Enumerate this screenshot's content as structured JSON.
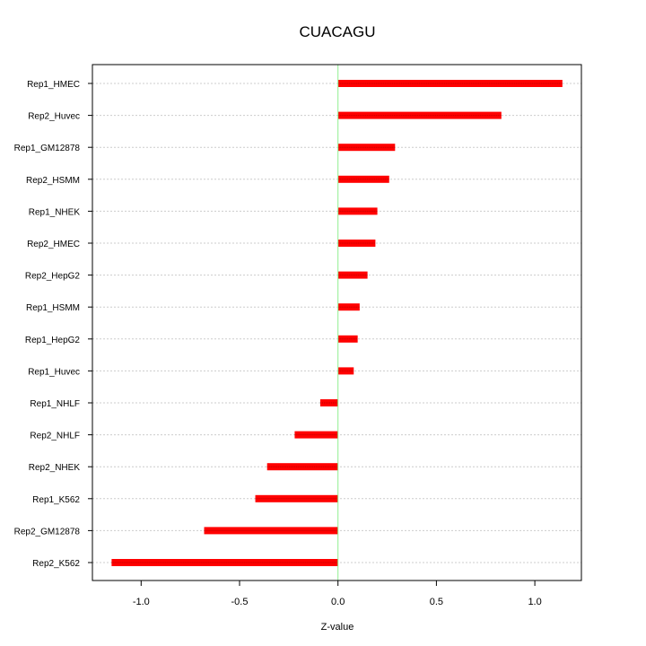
{
  "chart_data": {
    "type": "bar",
    "orientation": "horizontal",
    "title": "CUACAGU",
    "xlabel": "Z-value",
    "ylabel": "",
    "xlim": [
      -1.25,
      1.23
    ],
    "xticks": [
      -1.0,
      -0.5,
      0.0,
      0.5,
      1.0
    ],
    "xtick_labels": [
      "-1.0",
      "-0.5",
      "0.0",
      "0.5",
      "1.0"
    ],
    "grid": "horizontal dotted",
    "categories": [
      "Rep1_HMEC",
      "Rep2_Huvec",
      "Rep1_GM12878",
      "Rep2_HSMM",
      "Rep1_NHEK",
      "Rep2_HMEC",
      "Rep2_HepG2",
      "Rep1_HSMM",
      "Rep1_HepG2",
      "Rep1_Huvec",
      "Rep1_NHLF",
      "Rep2_NHLF",
      "Rep2_NHEK",
      "Rep1_K562",
      "Rep2_GM12878",
      "Rep2_K562"
    ],
    "values": [
      1.14,
      0.83,
      0.29,
      0.26,
      0.2,
      0.19,
      0.15,
      0.11,
      0.1,
      0.08,
      -0.09,
      -0.22,
      -0.36,
      -0.42,
      -0.68,
      -1.15
    ],
    "bar_color": "#ff0000",
    "zero_line_color": "#90ee90"
  }
}
